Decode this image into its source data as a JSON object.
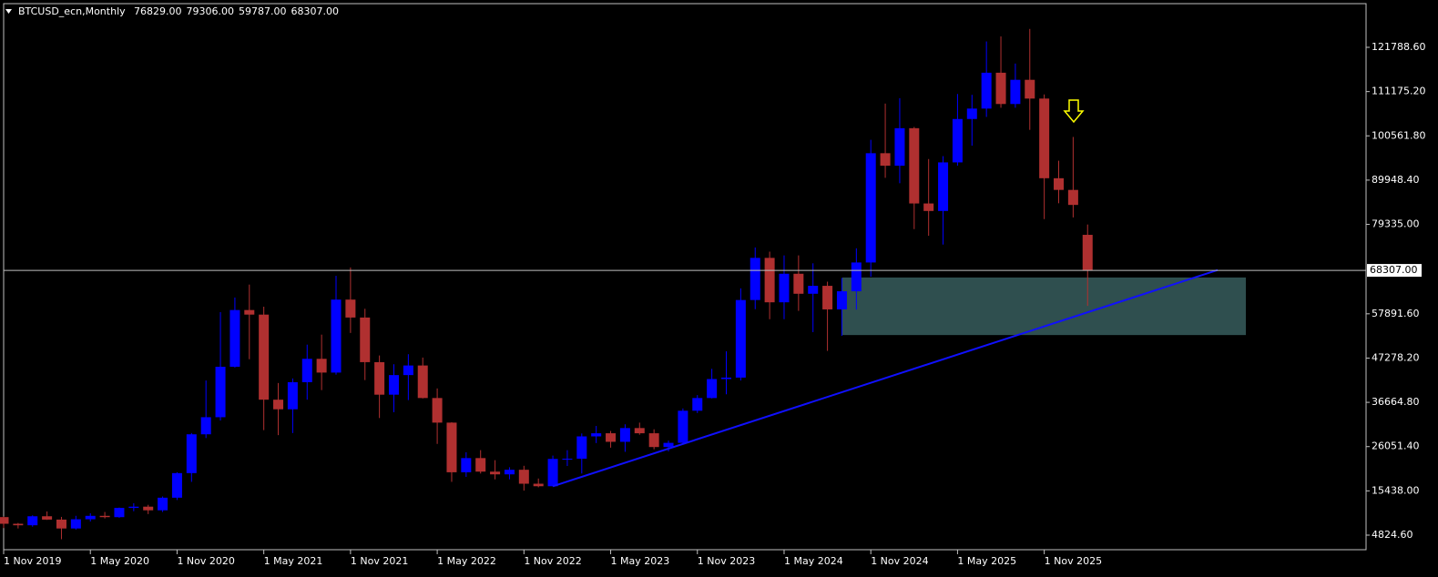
{
  "chart_data": {
    "type": "candlestick",
    "title": "BTCUSD_ecn,Monthly",
    "ohlc_labels": [
      "76829.00",
      "79306.00",
      "59787.00",
      "68307.00"
    ],
    "categories": [
      "1 Nov 2019",
      null,
      null,
      null,
      null,
      null,
      "1 May 2020",
      null,
      null,
      null,
      null,
      null,
      "1 Nov 2020",
      null,
      null,
      null,
      null,
      null,
      "1 May 2021",
      null,
      null,
      null,
      null,
      null,
      "1 Nov 2021",
      null,
      null,
      null,
      null,
      null,
      "1 May 2022",
      null,
      null,
      null,
      null,
      null,
      "1 Nov 2022",
      null,
      null,
      null,
      null,
      null,
      "1 May 2023",
      null,
      null,
      null,
      null,
      null,
      "1 Nov 2023",
      null,
      null,
      null,
      null,
      null,
      "1 May 2024",
      null,
      null,
      null,
      null,
      null,
      "1 Nov 2024",
      null,
      null,
      null,
      null,
      null,
      "1 May 2025",
      null,
      null,
      null,
      null,
      null,
      "1 Nov 2025",
      null,
      null,
      null
    ],
    "open": [
      9150,
      7550,
      7190,
      9350,
      8550,
      6420,
      8630,
      9450,
      9140,
      11350,
      11650,
      10780,
      13800,
      19700,
      29000,
      33100,
      45200,
      58800,
      57700,
      37300,
      35000,
      41500,
      47100,
      43800,
      61300,
      57000,
      46300,
      38500,
      43200,
      45500,
      37700,
      31800,
      19900,
      23300,
      20050,
      19400,
      20500,
      17150,
      16550,
      23100,
      23150,
      28500,
      29250,
      27200,
      30500,
      29250,
      25950,
      26950,
      34650,
      37700,
      42250,
      42600,
      61200,
      71300,
      60650,
      67500,
      62700,
      64600,
      58950,
      63300,
      70200,
      96400,
      93400,
      102400,
      84350,
      82550,
      94200,
      104600,
      107100,
      115700,
      108200,
      114000,
      109500,
      90400,
      87600,
      76829
    ],
    "high": [
      9270,
      7750,
      9580,
      10500,
      9200,
      9460,
      10070,
      10380,
      11440,
      12470,
      12090,
      14100,
      19900,
      29300,
      41900,
      58300,
      61800,
      64900,
      59600,
      41300,
      42400,
      50500,
      52900,
      67000,
      69000,
      59100,
      47900,
      45800,
      48200,
      47400,
      40000,
      31900,
      24700,
      25200,
      22800,
      21100,
      21450,
      18400,
      23900,
      25200,
      29200,
      31000,
      29800,
      31400,
      31800,
      30200,
      27500,
      35200,
      38400,
      44700,
      48900,
      64000,
      73800,
      72800,
      71900,
      71900,
      70000,
      65600,
      66500,
      73600,
      99600,
      108300,
      109600,
      102700,
      95000,
      95700,
      110600,
      110400,
      123200,
      124400,
      117900,
      126200,
      110500,
      94600,
      100300,
      79306
    ],
    "low": [
      6520,
      6430,
      6850,
      8480,
      3850,
      6150,
      8100,
      8830,
      8990,
      10560,
      9880,
      10380,
      13250,
      17600,
      28100,
      32300,
      45000,
      47000,
      30000,
      28800,
      29300,
      37300,
      39600,
      43300,
      53300,
      42000,
      32900,
      34300,
      37200,
      37600,
      26700,
      17600,
      18800,
      19600,
      18200,
      18200,
      15500,
      16300,
      16500,
      21400,
      19600,
      26900,
      25800,
      24800,
      28900,
      25400,
      24900,
      26600,
      34100,
      37600,
      38600,
      41900,
      59000,
      56600,
      56600,
      58600,
      53500,
      49000,
      52600,
      58900,
      66800,
      90500,
      89200,
      78200,
      76600,
      74500,
      93400,
      98200,
      105100,
      107300,
      107300,
      102000,
      80600,
      84400,
      81000,
      59787
    ],
    "close": [
      7550,
      7190,
      9350,
      8550,
      6420,
      8630,
      9450,
      9140,
      11350,
      11650,
      10780,
      13800,
      19700,
      29000,
      33100,
      45200,
      58800,
      57700,
      37300,
      35000,
      41500,
      47100,
      43800,
      61300,
      57000,
      46300,
      38500,
      43200,
      45500,
      37700,
      31800,
      19900,
      23300,
      20050,
      19400,
      20500,
      17150,
      16550,
      23100,
      23150,
      28500,
      29250,
      27200,
      30500,
      29250,
      25950,
      26950,
      34650,
      37700,
      42250,
      42600,
      61200,
      71300,
      60650,
      67500,
      62700,
      64600,
      58950,
      63300,
      70200,
      96400,
      93400,
      102400,
      84350,
      82550,
      94200,
      104600,
      107100,
      115700,
      108200,
      114000,
      109500,
      90400,
      87600,
      84000,
      68307
    ],
    "up_color": "#0000ff",
    "down_color": "#b03030",
    "ylim": [
      1333,
      132263
    ],
    "yticks": [
      {
        "value": 121788.6,
        "label": "121788.60"
      },
      {
        "value": 111175.2,
        "label": "111175.20"
      },
      {
        "value": 100561.8,
        "label": "100561.80"
      },
      {
        "value": 89948.4,
        "label": "89948.40"
      },
      {
        "value": 79335,
        "label": "79335.00"
      },
      {
        "value": 57891.6,
        "label": "57891.60"
      },
      {
        "value": 47278.2,
        "label": "47278.20"
      },
      {
        "value": 36664.8,
        "label": "36664.80"
      },
      {
        "value": 26051.4,
        "label": "26051.40"
      },
      {
        "value": 15438,
        "label": "15438.00"
      },
      {
        "value": 4824.6,
        "label": "4824.60"
      }
    ],
    "last_price": {
      "value": 68307,
      "label": "68307.00"
    },
    "zone": {
      "top": 66600,
      "bottom": 52800,
      "color": "#2f4f4f"
    },
    "trendline": {
      "start": 16550,
      "end": 68400,
      "color": "#1010ff"
    },
    "arrow_color": "#ffff00",
    "grid": false
  }
}
